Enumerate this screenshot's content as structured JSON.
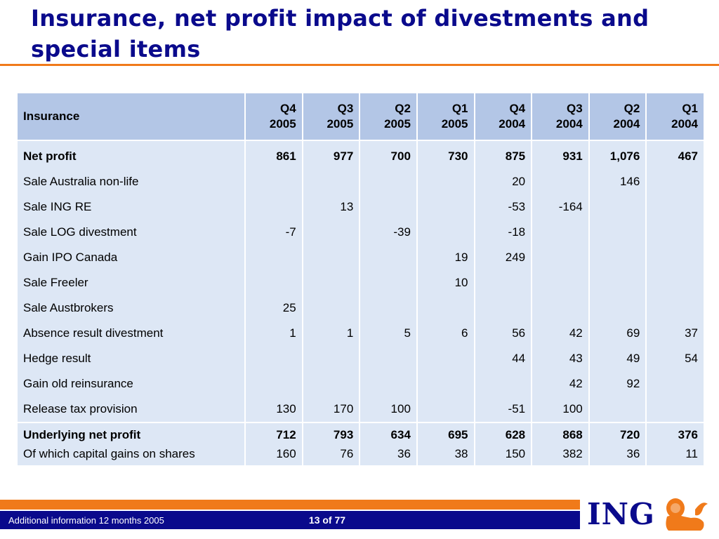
{
  "title": "Insurance, net profit impact of divestments and special items",
  "table": {
    "corner": "Insurance",
    "columns": [
      {
        "q": "Q4",
        "y": "2005"
      },
      {
        "q": "Q3",
        "y": "2005"
      },
      {
        "q": "Q2",
        "y": "2005"
      },
      {
        "q": "Q1",
        "y": "2005"
      },
      {
        "q": "Q4",
        "y": "2004"
      },
      {
        "q": "Q3",
        "y": "2004"
      },
      {
        "q": "Q2",
        "y": "2004"
      },
      {
        "q": "Q1",
        "y": "2004"
      }
    ],
    "rows": [
      {
        "label": "Net profit",
        "values": [
          "861",
          "977",
          "700",
          "730",
          "875",
          "931",
          "1,076",
          "467"
        ]
      },
      {
        "label": "Sale Australia non-life",
        "values": [
          "",
          "",
          "",
          "",
          "20",
          "",
          "146",
          ""
        ]
      },
      {
        "label": "Sale ING RE",
        "values": [
          "",
          "13",
          "",
          "",
          "-53",
          "-164",
          "",
          ""
        ]
      },
      {
        "label": "Sale LOG divestment",
        "values": [
          "-7",
          "",
          "-39",
          "",
          "-18",
          "",
          "",
          ""
        ]
      },
      {
        "label": "Gain IPO Canada",
        "values": [
          "",
          "",
          "",
          "19",
          "249",
          "",
          "",
          ""
        ]
      },
      {
        "label": "Sale Freeler",
        "values": [
          "",
          "",
          "",
          "10",
          "",
          "",
          "",
          ""
        ]
      },
      {
        "label": "Sale Austbrokers",
        "values": [
          "25",
          "",
          "",
          "",
          "",
          "",
          "",
          ""
        ]
      },
      {
        "label": "Absence result divestment",
        "values": [
          "1",
          "1",
          "5",
          "6",
          "56",
          "42",
          "69",
          "37"
        ]
      },
      {
        "label": "Hedge result",
        "values": [
          "",
          "",
          "",
          "",
          "44",
          "43",
          "49",
          "54"
        ]
      },
      {
        "label": "Gain old reinsurance",
        "values": [
          "",
          "",
          "",
          "",
          "",
          "42",
          "92",
          ""
        ]
      },
      {
        "label": "Release tax provision",
        "values": [
          "130",
          "170",
          "100",
          "",
          "-51",
          "100",
          "",
          ""
        ]
      },
      {
        "label": "Underlying net profit",
        "values": [
          "712",
          "793",
          "634",
          "695",
          "628",
          "868",
          "720",
          "376"
        ]
      },
      {
        "label": "Of which capital gains on shares",
        "values": [
          "160",
          "76",
          "36",
          "38",
          "150",
          "382",
          "36",
          "11"
        ]
      }
    ]
  },
  "footer": {
    "left_text": "Additional information 12 months 2005",
    "page": "13 of 77",
    "logo": "ING"
  },
  "colors": {
    "title": "#0a0a8c",
    "accent_orange": "#f07a1a",
    "header_bg": "#b3c6e6",
    "body_bg": "#dde7f5"
  },
  "icons": {
    "logo_mark": "lion-icon"
  }
}
